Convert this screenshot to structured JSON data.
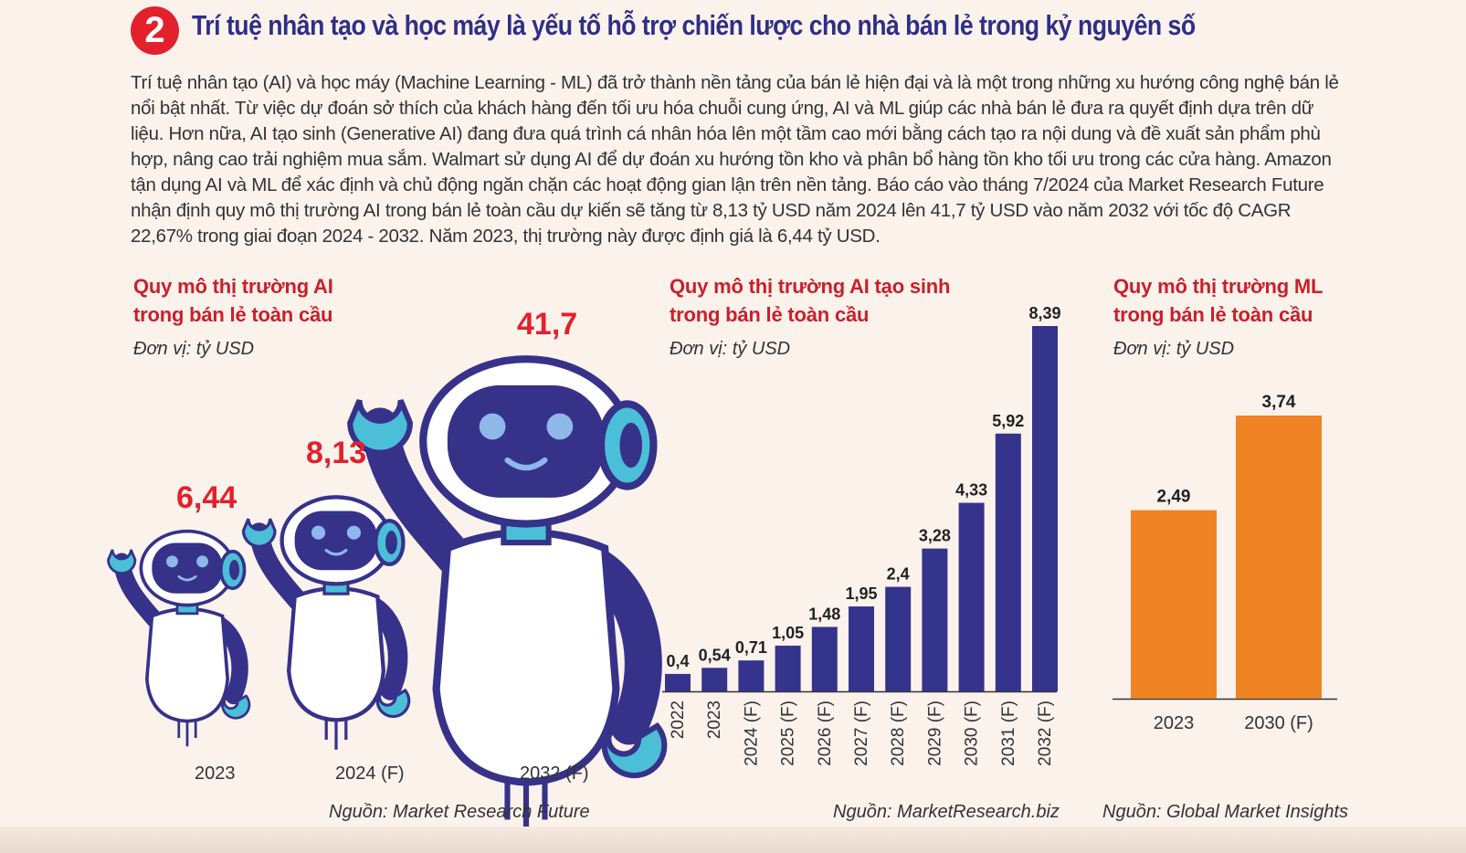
{
  "header": {
    "badge": "2",
    "title": "Trí tuệ nhân tạo và học máy là yếu tố hỗ trợ chiến lược cho nhà bán lẻ trong kỷ nguyên số"
  },
  "intro": "Trí tuệ nhân tạo (AI) và học máy (Machine Learning - ML) đã trở thành nền tảng của bán lẻ hiện đại và là một trong những xu hướng công nghệ bán lẻ nổi bật nhất. Từ việc dự đoán sở thích của khách hàng đến tối ưu hóa chuỗi cung ứng, AI và ML giúp các nhà bán lẻ đưa ra quyết định dựa trên dữ liệu. Hơn nữa, AI tạo sinh (Generative AI) đang đưa quá trình cá nhân hóa lên một tầm cao mới bằng cách tạo ra nội dung và đề xuất sản phẩm phù hợp, nâng cao trải nghiệm mua sắm. Walmart sử dụng AI để dự đoán xu hướng tồn kho và phân bổ hàng tồn kho tối ưu trong các cửa hàng. Amazon tận dụng AI và ML để xác định và chủ động ngăn chặn các hoạt động gian lận trên nền tảng. Báo cáo vào tháng 7/2024 của Market Research Future nhận định quy mô thị trường AI trong bán lẻ toàn cầu dự kiến sẽ tăng từ 8,13 tỷ USD năm 2024 lên 41,7 tỷ USD vào năm 2032 với tốc độ CAGR 22,67% trong giai đoạn 2024 - 2032. Năm 2023, thị trường này được định giá là 6,44 tỷ USD.",
  "chart_data": [
    {
      "type": "bar",
      "title_line1": "Quy mô thị trường AI",
      "title_line2": "trong bán lẻ toàn cầu",
      "unit": "Đơn vị: tỷ USD",
      "categories": [
        "2023",
        "2024 (F)",
        "2032 (F)"
      ],
      "values": [
        6.44,
        8.13,
        41.7
      ],
      "value_labels": [
        "6,44",
        "8,13",
        "41,7"
      ],
      "source": "Nguồn: Market Research Future",
      "mark": "robot-illustration",
      "colors": {
        "value": "#e2212c",
        "robot_body": "#ffffff",
        "robot_dark": "#36328a",
        "robot_accent": "#4bbfd8"
      }
    },
    {
      "type": "bar",
      "title_line1": "Quy mô thị trường AI tạo sinh",
      "title_line2": "trong bán lẻ toàn cầu",
      "unit": "Đơn vị: tỷ USD",
      "categories": [
        "2022",
        "2023",
        "2024 (F)",
        "2025 (F)",
        "2026 (F)",
        "2027 (F)",
        "2028 (F)",
        "2029 (F)",
        "2030 (F)",
        "2031 (F)",
        "2032 (F)"
      ],
      "values": [
        0.4,
        0.54,
        0.71,
        1.05,
        1.48,
        1.95,
        2.4,
        3.28,
        4.33,
        5.92,
        8.39
      ],
      "value_labels": [
        "0,4",
        "0,54",
        "0,71",
        "1,05",
        "1,48",
        "1,95",
        "2,4",
        "3,28",
        "4,33",
        "5,92",
        "8,39"
      ],
      "source": "Nguồn: MarketResearch.biz",
      "ylim": [
        0,
        8.39
      ],
      "color": "#35348c"
    },
    {
      "type": "bar",
      "title_line1": "Quy mô thị trường ML",
      "title_line2": "trong bán lẻ toàn cầu",
      "unit": "Đơn vị: tỷ USD",
      "categories": [
        "2023",
        "2030 (F)"
      ],
      "values": [
        2.49,
        3.74
      ],
      "value_labels": [
        "2,49",
        "3,74"
      ],
      "source": "Nguồn: Global Market Insights",
      "ylim": [
        0,
        3.74
      ],
      "color": "#f08424"
    }
  ]
}
